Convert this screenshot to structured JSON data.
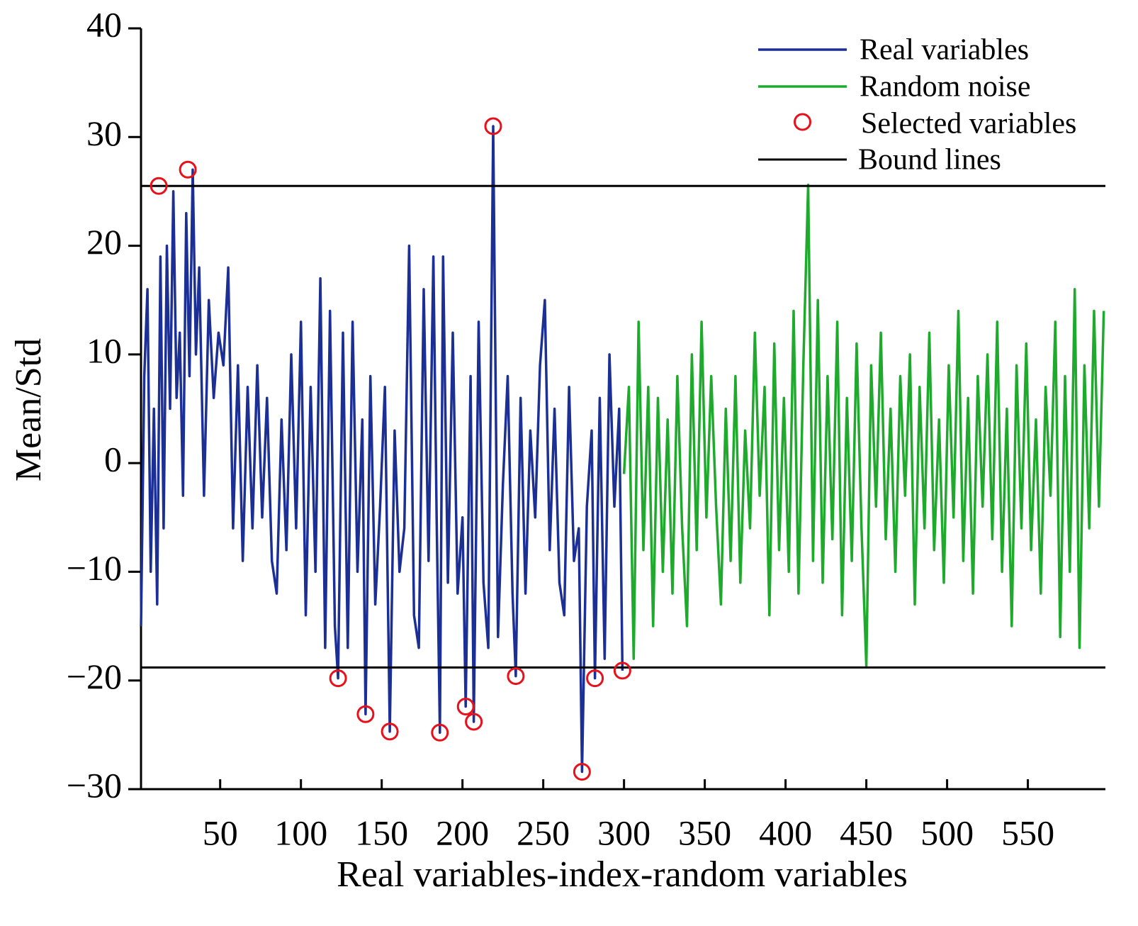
{
  "chart_data": {
    "type": "line",
    "xlabel": "Real variables-index-random variables",
    "ylabel": "Mean/Std",
    "xlim": [
      1,
      598
    ],
    "ylim": [
      -30,
      40
    ],
    "xticks": [
      50,
      100,
      150,
      200,
      250,
      300,
      350,
      400,
      450,
      500,
      550
    ],
    "yticks": [
      {
        "value": -30,
        "label": "−30"
      },
      {
        "value": -20,
        "label": "−20"
      },
      {
        "value": -10,
        "label": "−10"
      },
      0,
      10,
      20,
      30,
      40
    ],
    "legend": "upper right",
    "series": [
      {
        "name": "Real variables",
        "color": "#1c2f94",
        "x": [
          1,
          3,
          5,
          7,
          9,
          11,
          13,
          15,
          17,
          19,
          21,
          23,
          25,
          27,
          29,
          31,
          33,
          35,
          37,
          40,
          43,
          46,
          49,
          52,
          55,
          58,
          61,
          64,
          67,
          70,
          73,
          76,
          79,
          82,
          85,
          88,
          91,
          94,
          97,
          100,
          103,
          106,
          109,
          112,
          115,
          118,
          121,
          123,
          126,
          129,
          132,
          135,
          138,
          140,
          143,
          146,
          149,
          152,
          155,
          158,
          161,
          164,
          167,
          170,
          173,
          176,
          179,
          182,
          184,
          186,
          188,
          191,
          194,
          197,
          200,
          202,
          205,
          207,
          210,
          213,
          216,
          219,
          222,
          225,
          228,
          231,
          233,
          236,
          239,
          242,
          245,
          248,
          251,
          254,
          257,
          260,
          263,
          266,
          269,
          272,
          274,
          277,
          280,
          282,
          285,
          288,
          291,
          294,
          297,
          299
        ],
        "values": [
          -15,
          8,
          16,
          -10,
          5,
          -13,
          19,
          -6,
          20,
          5,
          25,
          6,
          12,
          -3,
          23,
          8,
          27,
          10,
          18,
          -3,
          15,
          6,
          12,
          9,
          18,
          -6,
          9,
          -9,
          7,
          -6,
          9,
          -5,
          6,
          -9,
          -12,
          4,
          -8,
          10,
          -6,
          13,
          -14,
          7,
          -10,
          17,
          -17,
          14,
          -15,
          -19.8,
          12,
          -17,
          13,
          -10,
          4,
          -23.1,
          8,
          -13,
          -4,
          7,
          -24.7,
          3,
          -10,
          -6,
          20,
          -14,
          -17,
          16,
          -9,
          19,
          -5,
          -24.8,
          19,
          -11,
          12,
          -12,
          -5,
          -22.4,
          8,
          -23.8,
          13,
          -11,
          -17,
          31,
          -16,
          -2,
          8,
          -12,
          -19.6,
          6,
          -12,
          3,
          -5,
          9,
          15,
          -8,
          5,
          -11,
          -14,
          7,
          -9,
          -6,
          -28.4,
          -4,
          3,
          -19.8,
          6,
          -18,
          10,
          -4,
          5,
          -19.1
        ]
      },
      {
        "name": "Random noise",
        "color": "#1faa2e",
        "x": [
          300,
          303,
          306,
          309,
          312,
          315,
          318,
          321,
          324,
          327,
          330,
          333,
          336,
          339,
          342,
          345,
          348,
          351,
          354,
          357,
          360,
          363,
          366,
          369,
          372,
          375,
          378,
          381,
          384,
          387,
          390,
          393,
          396,
          399,
          402,
          405,
          408,
          411,
          414,
          417,
          420,
          423,
          426,
          429,
          432,
          435,
          438,
          441,
          444,
          447,
          450,
          453,
          456,
          459,
          462,
          465,
          468,
          471,
          474,
          477,
          480,
          483,
          486,
          489,
          492,
          495,
          498,
          501,
          504,
          507,
          510,
          513,
          516,
          519,
          522,
          525,
          528,
          531,
          534,
          537,
          540,
          543,
          546,
          549,
          552,
          555,
          558,
          561,
          564,
          567,
          570,
          573,
          576,
          579,
          582,
          585,
          588,
          591,
          594,
          597
        ],
        "values": [
          -1,
          7,
          -18,
          13,
          -8,
          7,
          -15,
          6,
          -10,
          4,
          -12,
          8,
          -6,
          -15,
          10,
          -8,
          13,
          -5,
          8,
          -4,
          -13,
          5,
          -9,
          8,
          -11,
          3,
          -6,
          12,
          -3,
          7,
          -14,
          11,
          -8,
          6,
          -10,
          14,
          -12,
          9,
          25.6,
          -9,
          15,
          -11,
          8,
          -7,
          13,
          -14,
          6,
          -9,
          11,
          -6,
          -18.7,
          9,
          -4,
          12,
          -7,
          5,
          -10,
          8,
          -3,
          10,
          -13,
          7,
          -6,
          12,
          -8,
          4,
          -11,
          9,
          -5,
          14,
          -9,
          6,
          -12,
          8,
          -4,
          10,
          -7,
          13,
          -10,
          5,
          -15,
          9,
          -6,
          11,
          -8,
          4,
          -12,
          7,
          -3,
          13,
          -16,
          8,
          -10,
          16,
          -17,
          9,
          -6,
          14,
          -4,
          14
        ]
      }
    ],
    "selected": {
      "name": "Selected variables",
      "color": "#e8101a",
      "x": [
        12,
        30,
        219,
        123,
        140,
        155,
        186,
        202,
        207,
        233,
        274,
        282,
        299
      ],
      "values": [
        25.5,
        27,
        31,
        -19.8,
        -23.1,
        -24.7,
        -24.8,
        -22.4,
        -23.8,
        -19.6,
        -28.4,
        -19.8,
        -19.1
      ]
    },
    "bound_lines": {
      "name": "Bound lines",
      "color": "#000000",
      "values": [
        25.5,
        -18.8
      ]
    }
  }
}
